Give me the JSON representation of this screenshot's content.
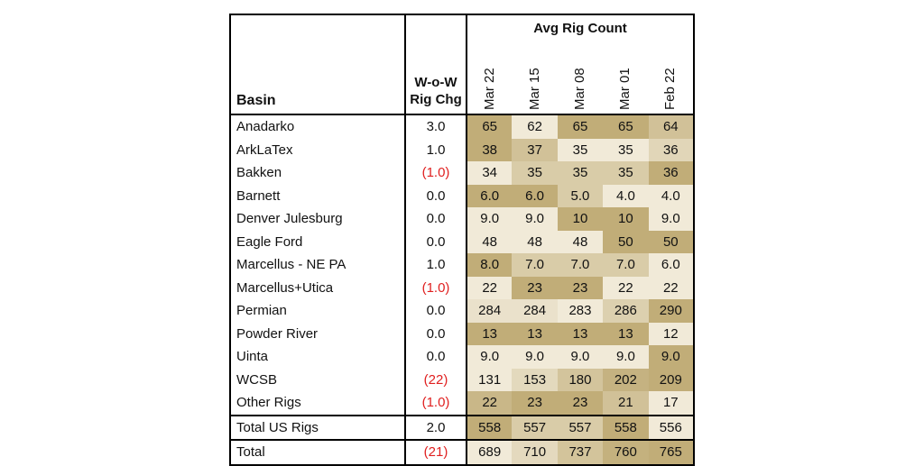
{
  "table": {
    "header": {
      "basin_label": "Basin",
      "chg_label_line1": "W-o-W",
      "chg_label_line2": "Rig Chg",
      "avg_label": "Avg Rig Count",
      "dates": [
        "Mar 22",
        "Mar 15",
        "Mar 08",
        "Mar 01",
        "Feb 22"
      ]
    },
    "colors": {
      "negative": "#e02020",
      "shade_darkest": "#c1ad78",
      "shade_lightest": "#f6f1e3"
    },
    "rows": [
      {
        "basin": "Anadarko",
        "chg": "3.0",
        "neg": false,
        "values": [
          "65",
          "62",
          "65",
          "65",
          "64"
        ],
        "nums": [
          65,
          62,
          65,
          65,
          64
        ]
      },
      {
        "basin": "ArkLaTex",
        "chg": "1.0",
        "neg": false,
        "values": [
          "38",
          "37",
          "35",
          "35",
          "36"
        ],
        "nums": [
          38,
          37,
          35,
          35,
          36
        ]
      },
      {
        "basin": "Bakken",
        "chg": "(1.0)",
        "neg": true,
        "values": [
          "34",
          "35",
          "35",
          "35",
          "36"
        ],
        "nums": [
          34,
          35,
          35,
          35,
          36
        ]
      },
      {
        "basin": "Barnett",
        "chg": "0.0",
        "neg": false,
        "values": [
          "6.0",
          "6.0",
          "5.0",
          "4.0",
          "4.0"
        ],
        "nums": [
          6,
          6,
          5,
          4,
          4
        ]
      },
      {
        "basin": "Denver Julesburg",
        "chg": "0.0",
        "neg": false,
        "values": [
          "9.0",
          "9.0",
          "10",
          "10",
          "9.0"
        ],
        "nums": [
          9,
          9,
          10,
          10,
          9
        ]
      },
      {
        "basin": "Eagle Ford",
        "chg": "0.0",
        "neg": false,
        "values": [
          "48",
          "48",
          "48",
          "50",
          "50"
        ],
        "nums": [
          48,
          48,
          48,
          50,
          50
        ]
      },
      {
        "basin": "Marcellus - NE PA",
        "chg": "1.0",
        "neg": false,
        "values": [
          "8.0",
          "7.0",
          "7.0",
          "7.0",
          "6.0"
        ],
        "nums": [
          8,
          7,
          7,
          7,
          6
        ]
      },
      {
        "basin": "Marcellus+Utica",
        "chg": "(1.0)",
        "neg": true,
        "values": [
          "22",
          "23",
          "23",
          "22",
          "22"
        ],
        "nums": [
          22,
          23,
          23,
          22,
          22
        ]
      },
      {
        "basin": "Permian",
        "chg": "0.0",
        "neg": false,
        "values": [
          "284",
          "284",
          "283",
          "286",
          "290"
        ],
        "nums": [
          284,
          284,
          283,
          286,
          290
        ]
      },
      {
        "basin": "Powder River",
        "chg": "0.0",
        "neg": false,
        "values": [
          "13",
          "13",
          "13",
          "13",
          "12"
        ],
        "nums": [
          13,
          13,
          13,
          13,
          12
        ]
      },
      {
        "basin": "Uinta",
        "chg": "0.0",
        "neg": false,
        "values": [
          "9.0",
          "9.0",
          "9.0",
          "9.0",
          "9.0"
        ],
        "nums": [
          9,
          9,
          9,
          9,
          9.01
        ]
      },
      {
        "basin": "WCSB",
        "chg": "(22)",
        "neg": true,
        "values": [
          "131",
          "153",
          "180",
          "202",
          "209"
        ],
        "nums": [
          131,
          153,
          180,
          202,
          209
        ]
      },
      {
        "basin": "Other Rigs",
        "chg": "(1.0)",
        "neg": true,
        "values": [
          "22",
          "23",
          "23",
          "21",
          "17"
        ],
        "nums": [
          22,
          23,
          23,
          21,
          17
        ]
      },
      {
        "basin": "Total US Rigs",
        "chg": "2.0",
        "neg": false,
        "values": [
          "558",
          "557",
          "557",
          "558",
          "556"
        ],
        "nums": [
          558,
          557,
          557,
          558,
          556
        ],
        "cls": "total-us"
      },
      {
        "basin": "Total",
        "chg": "(21)",
        "neg": true,
        "values": [
          "689",
          "710",
          "737",
          "760",
          "765"
        ],
        "nums": [
          689,
          710,
          737,
          760,
          765
        ],
        "cls": "total"
      }
    ]
  }
}
